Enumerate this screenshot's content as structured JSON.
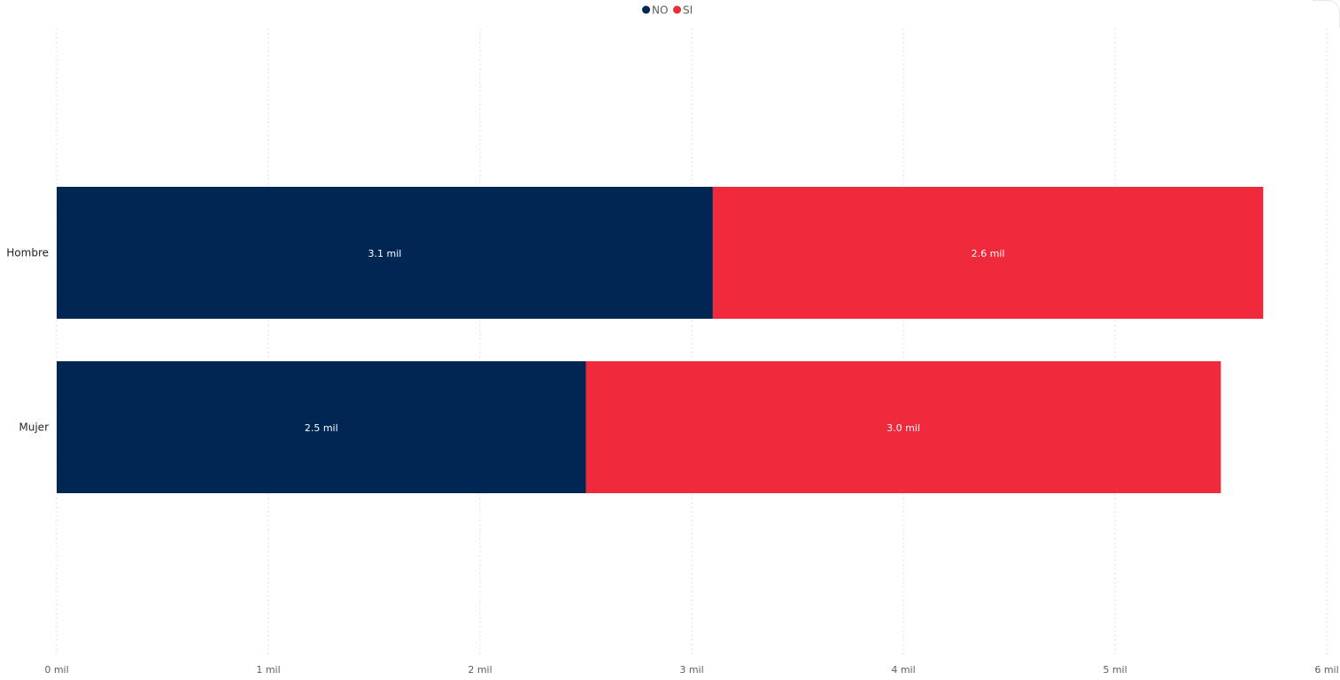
{
  "chart_data": {
    "type": "bar",
    "orientation": "horizontal",
    "stacked": true,
    "categories": [
      "Hombre",
      "Mujer"
    ],
    "series": [
      {
        "name": "NO",
        "color": "#002654",
        "values": [
          3.1,
          2.5
        ],
        "labels": [
          "3.1 mil",
          "2.5 mil"
        ]
      },
      {
        "name": "SI",
        "color": "#ee2a3c",
        "values": [
          2.6,
          3.0
        ],
        "labels": [
          "2.6 mil",
          "3.0 mil"
        ]
      }
    ],
    "xlim": [
      0,
      6
    ],
    "xticks": [
      0,
      1,
      2,
      3,
      4,
      5,
      6
    ],
    "xtick_labels": [
      "0 mil",
      "1 mil",
      "2 mil",
      "3 mil",
      "4 mil",
      "5 mil",
      "6 mil"
    ],
    "grid": true,
    "legend_position": "top-center",
    "title": "",
    "xlabel": "",
    "ylabel": ""
  }
}
